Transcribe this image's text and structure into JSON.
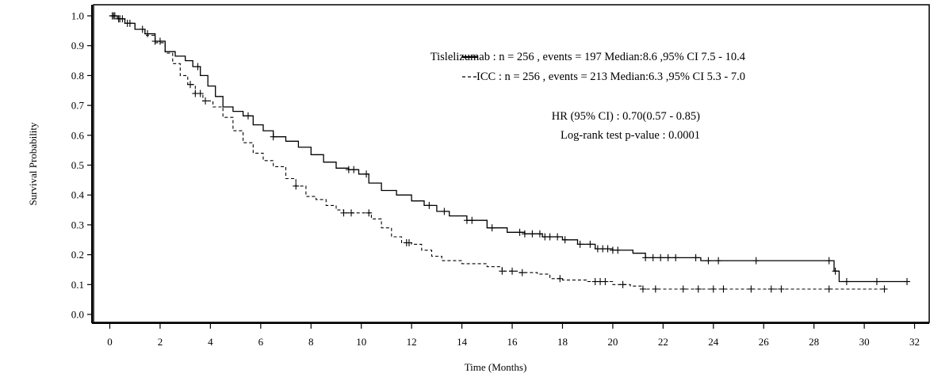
{
  "chart_data": {
    "type": "line",
    "xlabel": "Time  (Months)",
    "ylabel": "Survival Probability",
    "xlim": [
      0,
      32
    ],
    "ylim": [
      0,
      1.0
    ],
    "xticks": [
      "0",
      "2",
      "4",
      "6",
      "8",
      "10",
      "12",
      "14",
      "16",
      "18",
      "20",
      "22",
      "24",
      "26",
      "28",
      "30",
      "32"
    ],
    "yticks": [
      "0.0",
      "0.1",
      "0.2",
      "0.3",
      "0.4",
      "0.5",
      "0.6",
      "0.7",
      "0.8",
      "0.9",
      "1.0"
    ],
    "grid": false,
    "legend_position": "top-right",
    "series": [
      {
        "name": "Tislelizumab : n = 256 , events = 197 Median:8.6 ,95% CI 7.5 - 10.4",
        "line_style": "solid",
        "points": [
          [
            0,
            1.0
          ],
          [
            0.3,
            0.99
          ],
          [
            0.6,
            0.975
          ],
          [
            1.0,
            0.955
          ],
          [
            1.4,
            0.94
          ],
          [
            1.8,
            0.915
          ],
          [
            2.2,
            0.88
          ],
          [
            2.6,
            0.865
          ],
          [
            3.0,
            0.85
          ],
          [
            3.3,
            0.83
          ],
          [
            3.6,
            0.8
          ],
          [
            3.9,
            0.765
          ],
          [
            4.2,
            0.73
          ],
          [
            4.5,
            0.695
          ],
          [
            4.9,
            0.68
          ],
          [
            5.3,
            0.665
          ],
          [
            5.7,
            0.635
          ],
          [
            6.1,
            0.615
          ],
          [
            6.5,
            0.595
          ],
          [
            7.0,
            0.58
          ],
          [
            7.5,
            0.56
          ],
          [
            8.0,
            0.535
          ],
          [
            8.5,
            0.51
          ],
          [
            9.0,
            0.49
          ],
          [
            9.5,
            0.485
          ],
          [
            9.9,
            0.47
          ],
          [
            10.3,
            0.44
          ],
          [
            10.8,
            0.415
          ],
          [
            11.4,
            0.4
          ],
          [
            12.0,
            0.38
          ],
          [
            12.5,
            0.365
          ],
          [
            13.0,
            0.345
          ],
          [
            13.5,
            0.33
          ],
          [
            14.2,
            0.315
          ],
          [
            15.0,
            0.29
          ],
          [
            15.8,
            0.275
          ],
          [
            16.5,
            0.27
          ],
          [
            17.2,
            0.26
          ],
          [
            18.0,
            0.25
          ],
          [
            18.6,
            0.235
          ],
          [
            19.3,
            0.22
          ],
          [
            20.0,
            0.215
          ],
          [
            20.8,
            0.205
          ],
          [
            21.3,
            0.19
          ],
          [
            22.0,
            0.19
          ],
          [
            23.0,
            0.19
          ],
          [
            23.5,
            0.18
          ],
          [
            24.5,
            0.18
          ],
          [
            26.0,
            0.18
          ],
          [
            27.5,
            0.18
          ],
          [
            28.6,
            0.18
          ],
          [
            28.8,
            0.145
          ],
          [
            28.9,
            0.145
          ],
          [
            29.0,
            0.11
          ],
          [
            30.0,
            0.11
          ],
          [
            31.7,
            0.11
          ]
        ],
        "censors": [
          0.1,
          0.2,
          0.35,
          0.5,
          0.7,
          1.3,
          1.5,
          1.8,
          2.0,
          3.5,
          5.5,
          6.5,
          9.5,
          9.7,
          10.2,
          12.7,
          13.3,
          14.2,
          14.4,
          15.2,
          16.3,
          16.5,
          16.8,
          17.1,
          17.3,
          17.5,
          17.8,
          18.1,
          18.7,
          19.1,
          19.4,
          19.6,
          19.8,
          20.0,
          20.2,
          21.3,
          21.6,
          21.9,
          22.2,
          22.5,
          23.3,
          23.8,
          24.2,
          25.7,
          28.6,
          28.85,
          29.3,
          30.5,
          31.7
        ]
      },
      {
        "name": "ICC : n = 256 , events = 213 Median:6.3 ,95% CI 5.3 - 7.0",
        "line_style": "dashed",
        "points": [
          [
            0,
            1.0
          ],
          [
            0.3,
            0.99
          ],
          [
            0.6,
            0.975
          ],
          [
            1.0,
            0.955
          ],
          [
            1.4,
            0.935
          ],
          [
            1.8,
            0.91
          ],
          [
            2.2,
            0.875
          ],
          [
            2.5,
            0.84
          ],
          [
            2.8,
            0.8
          ],
          [
            3.1,
            0.77
          ],
          [
            3.4,
            0.74
          ],
          [
            3.7,
            0.715
          ],
          [
            4.1,
            0.695
          ],
          [
            4.5,
            0.66
          ],
          [
            4.9,
            0.615
          ],
          [
            5.3,
            0.575
          ],
          [
            5.7,
            0.54
          ],
          [
            6.1,
            0.515
          ],
          [
            6.5,
            0.495
          ],
          [
            7.0,
            0.455
          ],
          [
            7.4,
            0.43
          ],
          [
            7.8,
            0.395
          ],
          [
            8.2,
            0.385
          ],
          [
            8.6,
            0.365
          ],
          [
            9.0,
            0.35
          ],
          [
            9.3,
            0.34
          ],
          [
            10.0,
            0.34
          ],
          [
            10.4,
            0.32
          ],
          [
            10.8,
            0.29
          ],
          [
            11.2,
            0.26
          ],
          [
            11.6,
            0.24
          ],
          [
            12.0,
            0.235
          ],
          [
            12.4,
            0.215
          ],
          [
            12.8,
            0.195
          ],
          [
            13.2,
            0.18
          ],
          [
            14.0,
            0.17
          ],
          [
            15.0,
            0.16
          ],
          [
            15.6,
            0.145
          ],
          [
            16.2,
            0.14
          ],
          [
            17.0,
            0.135
          ],
          [
            17.5,
            0.12
          ],
          [
            18.0,
            0.115
          ],
          [
            19.0,
            0.11
          ],
          [
            20.0,
            0.1
          ],
          [
            20.7,
            0.095
          ],
          [
            21.2,
            0.085
          ],
          [
            22.0,
            0.085
          ],
          [
            24.0,
            0.085
          ],
          [
            26.0,
            0.085
          ],
          [
            28.0,
            0.085
          ],
          [
            30.8,
            0.085
          ]
        ],
        "censors": [
          0.15,
          0.4,
          0.8,
          3.2,
          3.4,
          3.6,
          3.8,
          7.4,
          9.3,
          9.6,
          10.3,
          11.8,
          11.9,
          15.6,
          16.0,
          16.4,
          17.9,
          19.3,
          19.5,
          19.7,
          20.4,
          21.2,
          21.7,
          22.8,
          23.4,
          24.0,
          24.4,
          25.5,
          26.3,
          26.7,
          28.6,
          30.8
        ]
      }
    ],
    "annotations": [
      "HR (95% CI) : 0.70(0.57  -  0.85)",
      "Log-rank test  p-value : 0.0001"
    ]
  }
}
